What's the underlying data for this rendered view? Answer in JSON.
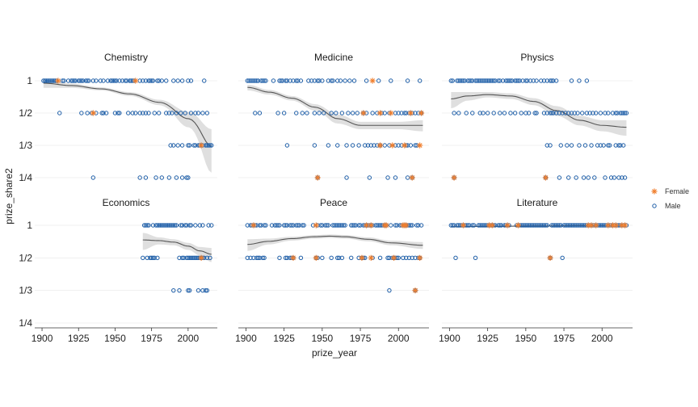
{
  "chart_data": {
    "type": "scatter",
    "xlabel": "prize_year",
    "ylabel": "prize_share2",
    "xlim": [
      1895,
      2020
    ],
    "x_ticks": [
      1900,
      1925,
      1950,
      1975,
      2000
    ],
    "y_scale": "reciprocal",
    "y_ticks": [
      {
        "label": "1",
        "value": 1
      },
      {
        "label": "1/2",
        "value": 0.5
      },
      {
        "label": "1/3",
        "value": 0.3333
      },
      {
        "label": "1/4",
        "value": 0.25
      }
    ],
    "facets_layout": "2 rows x 3 columns, x axis shared per column, y axis shared per row",
    "smoother": {
      "method": "loess with confidence band",
      "line_color": "#555555",
      "band_color": "#d9d9d9"
    },
    "legend": {
      "position": "right",
      "entries": [
        {
          "name": "Female",
          "shape": "asterisk",
          "color": "#f07f2e"
        },
        {
          "name": "Male",
          "shape": "open-circle",
          "color": "#1f5fa8"
        }
      ]
    },
    "panels": [
      {
        "title": "Chemistry",
        "male": {
          "1": [
            1901,
            1902,
            1903,
            1904,
            1905,
            1906,
            1907,
            1908,
            1909,
            1910,
            1914,
            1915,
            1918,
            1920,
            1921,
            1922,
            1923,
            1925,
            1926,
            1927,
            1928,
            1930,
            1931,
            1932,
            1935,
            1937,
            1940,
            1942,
            1945,
            1947,
            1948,
            1949,
            1950,
            1951,
            1953,
            1955,
            1957,
            1958,
            1960,
            1961,
            1962,
            1963,
            1967,
            1969,
            1971,
            1973,
            1974,
            1975,
            1976,
            1979,
            1980,
            1982,
            1985,
            1990,
            1993,
            1996,
            2000,
            2002,
            2011
          ],
          "0.5": [
            1912,
            1927,
            1931,
            1934,
            1937,
            1941,
            1942,
            1944,
            1950,
            1952,
            1953,
            1959,
            1962,
            1964,
            1967,
            1969,
            1971,
            1973,
            1977,
            1980,
            1985,
            1987,
            1989,
            1992,
            1995,
            1998,
            2002,
            2005,
            2007,
            2010,
            2013
          ],
          "0.3333": [
            1988,
            1990,
            1993,
            1996,
            2000,
            2001,
            2004,
            2005,
            2007,
            2008,
            2010,
            2012,
            2013,
            2014,
            2015,
            2016
          ],
          "0.25": [
            1935,
            1967,
            1971,
            1978,
            1982,
            1987,
            1992,
            1996,
            1999,
            2000
          ]
        },
        "female": {
          "1": [
            1911,
            1964
          ],
          "0.5": [
            1935
          ],
          "0.3333": [
            2009
          ],
          "0.25": []
        },
        "smooth": {
          "x": [
            1901,
            1920,
            1940,
            1960,
            1980,
            2000,
            2016
          ],
          "y": [
            0.93,
            0.87,
            0.8,
            0.71,
            0.6,
            0.46,
            0.33
          ],
          "band_halfwidth": [
            0.11,
            0.05,
            0.03,
            0.03,
            0.03,
            0.05,
            0.07
          ]
        }
      },
      {
        "title": "Medicine",
        "male": {
          "1": [
            1901,
            1902,
            1903,
            1904,
            1905,
            1906,
            1907,
            1908,
            1910,
            1911,
            1912,
            1913,
            1918,
            1922,
            1923,
            1924,
            1926,
            1927,
            1929,
            1931,
            1933,
            1934,
            1936,
            1941,
            1943,
            1945,
            1947,
            1948,
            1950,
            1954,
            1956,
            1957,
            1960,
            1962,
            1965,
            1968,
            1971,
            1979,
            1987,
            1995,
            2006,
            2014
          ],
          "0.5": [
            1906,
            1909,
            1921,
            1925,
            1933,
            1937,
            1940,
            1945,
            1948,
            1951,
            1956,
            1959,
            1963,
            1967,
            1970,
            1973,
            1977,
            1979,
            1983,
            1986,
            1989,
            1991,
            1994,
            1998,
            2000,
            2002,
            2004,
            2005,
            2007,
            2009,
            2011,
            2013,
            2015
          ],
          "0.3333": [
            1927,
            1945,
            1954,
            1960,
            1966,
            1970,
            1974,
            1978,
            1980,
            1982,
            1984,
            1986,
            1988,
            1991,
            1994,
            1998,
            2000,
            2002,
            2005,
            2006,
            2008,
            2011,
            2012
          ],
          "0.25": [
            1947,
            1966,
            1981,
            1993,
            1998,
            2006,
            2009
          ]
        },
        "female": {
          "1": [
            1983
          ],
          "0.5": [
            1977,
            1988,
            1995,
            2008,
            2015
          ],
          "0.3333": [
            1988,
            1996,
            2004,
            2014
          ],
          "0.25": [
            1947,
            2009
          ]
        },
        "smooth": {
          "x": [
            1901,
            1915,
            1930,
            1945,
            1960,
            1975,
            1990,
            2000,
            2016
          ],
          "y": [
            0.83,
            0.74,
            0.65,
            0.55,
            0.46,
            0.42,
            0.42,
            0.42,
            0.42
          ],
          "band_halfwidth": [
            0.06,
            0.04,
            0.03,
            0.03,
            0.03,
            0.02,
            0.02,
            0.02,
            0.03
          ]
        }
      },
      {
        "title": "Physics",
        "male": {
          "1": [
            1901,
            1902,
            1905,
            1906,
            1907,
            1908,
            1909,
            1910,
            1912,
            1913,
            1914,
            1915,
            1917,
            1918,
            1919,
            1920,
            1921,
            1922,
            1923,
            1924,
            1925,
            1926,
            1927,
            1928,
            1929,
            1930,
            1932,
            1933,
            1935,
            1937,
            1938,
            1939,
            1940,
            1941,
            1943,
            1944,
            1945,
            1946,
            1948,
            1950,
            1951,
            1953,
            1955,
            1957,
            1960,
            1962,
            1964,
            1966,
            1967,
            1968,
            1970,
            1980,
            1985,
            1990
          ],
          "0.5": [
            1903,
            1906,
            1911,
            1915,
            1920,
            1922,
            1925,
            1929,
            1933,
            1936,
            1940,
            1943,
            1947,
            1950,
            1952,
            1956,
            1957,
            1962,
            1964,
            1966,
            1967,
            1968,
            1970,
            1972,
            1974,
            1976,
            1978,
            1980,
            1982,
            1984,
            1987,
            1990,
            1992,
            1994,
            1996,
            1999,
            2002,
            2004,
            2007,
            2009,
            2010,
            2012,
            2013,
            2014,
            2015,
            2016
          ],
          "0.3333": [
            1964,
            1966,
            1973,
            1977,
            1980,
            1985,
            1989,
            1993,
            1997,
            1999,
            2001,
            2004,
            2005,
            2009,
            2011,
            2012,
            2014
          ],
          "0.25": [
            1903,
            1963,
            1972,
            1978,
            1983,
            1988,
            1991,
            1995,
            2002,
            2006,
            2008,
            2011,
            2013,
            2015
          ]
        },
        "female": {
          "1": [],
          "0.5": [],
          "0.3333": [],
          "0.25": [
            1903,
            1963
          ]
        },
        "smooth": {
          "x": [
            1901,
            1912,
            1925,
            1940,
            1955,
            1970,
            1985,
            2000,
            2016
          ],
          "y": [
            0.64,
            0.68,
            0.7,
            0.68,
            0.61,
            0.52,
            0.45,
            0.42,
            0.41
          ],
          "band_halfwidth": [
            0.1,
            0.06,
            0.04,
            0.04,
            0.04,
            0.04,
            0.03,
            0.03,
            0.04
          ]
        }
      },
      {
        "title": "Economics",
        "male": {
          "1": [
            1970,
            1971,
            1972,
            1973,
            1976,
            1978,
            1979,
            1980,
            1981,
            1982,
            1983,
            1984,
            1985,
            1986,
            1987,
            1988,
            1989,
            1990,
            1991,
            1992,
            1995,
            1996,
            1998,
            1999,
            2001,
            2002,
            2005,
            2008,
            2010,
            2014,
            2016
          ],
          "0.5": [
            1969,
            1972,
            1974,
            1975,
            1976,
            1977,
            1979,
            1994,
            1996,
            1997,
            1999,
            2000,
            2001,
            2002,
            2003,
            2004,
            2005,
            2006,
            2007,
            2008,
            2009,
            2010,
            2011,
            2013,
            2015
          ],
          "0.3333": [
            1990,
            1994,
            2000,
            2001,
            2007,
            2010,
            2012,
            2013
          ],
          "0.25": []
        },
        "female": {
          "1": [],
          "0.5": [
            2009
          ],
          "0.3333": [],
          "0.25": []
        },
        "smooth": {
          "x": [
            1969,
            1980,
            1990,
            2000,
            2008,
            2016
          ],
          "y": [
            0.69,
            0.68,
            0.66,
            0.61,
            0.56,
            0.53
          ],
          "band_halfwidth": [
            0.12,
            0.05,
            0.04,
            0.04,
            0.04,
            0.06
          ]
        }
      },
      {
        "title": "Peace",
        "male": {
          "1": [
            1901,
            1903,
            1904,
            1906,
            1907,
            1909,
            1910,
            1912,
            1913,
            1917,
            1919,
            1920,
            1921,
            1922,
            1925,
            1926,
            1927,
            1929,
            1930,
            1931,
            1933,
            1934,
            1935,
            1937,
            1938,
            1944,
            1947,
            1949,
            1950,
            1952,
            1953,
            1954,
            1957,
            1958,
            1959,
            1960,
            1961,
            1962,
            1963,
            1964,
            1965,
            1969,
            1970,
            1971,
            1972,
            1974,
            1975,
            1977,
            1978,
            1979,
            1980,
            1981,
            1982,
            1983,
            1985,
            1986,
            1987,
            1988,
            1989,
            1990,
            1991,
            1992,
            1995,
            1998,
            1999,
            2001,
            2002,
            2004,
            2005,
            2006,
            2007,
            2008,
            2009,
            2012,
            2013,
            2015
          ],
          "0.5": [
            1901,
            1903,
            1905,
            1907,
            1908,
            1909,
            1911,
            1912,
            1922,
            1926,
            1927,
            1929,
            1930,
            1931,
            1936,
            1946,
            1947,
            1950,
            1956,
            1960,
            1961,
            1963,
            1969,
            1974,
            1976,
            1977,
            1978,
            1983,
            1988,
            1993,
            1994,
            1996,
            1997,
            1998,
            1999,
            2000,
            2003,
            2005,
            2007,
            2009,
            2011,
            2013,
            2014
          ],
          "0.3333": [
            1994,
            2011
          ],
          "0.25": []
        },
        "female": {
          "1": [
            1905,
            1946,
            1979,
            1982,
            1991,
            1992,
            2003,
            2004,
            2005
          ],
          "0.5": [
            1931,
            1946,
            1976,
            1982,
            1997,
            2014
          ],
          "0.3333": [
            2011
          ],
          "0.25": []
        },
        "smooth": {
          "x": [
            1901,
            1915,
            1930,
            1945,
            1955,
            1965,
            1980,
            1995,
            2016
          ],
          "y": [
            0.63,
            0.67,
            0.71,
            0.74,
            0.75,
            0.74,
            0.7,
            0.65,
            0.62
          ],
          "band_halfwidth": [
            0.07,
            0.04,
            0.03,
            0.03,
            0.03,
            0.03,
            0.03,
            0.03,
            0.04
          ]
        }
      },
      {
        "title": "Literature",
        "male": {
          "1": [
            1901,
            1902,
            1903,
            1905,
            1906,
            1907,
            1908,
            1910,
            1911,
            1912,
            1913,
            1915,
            1916,
            1919,
            1920,
            1921,
            1922,
            1923,
            1924,
            1925,
            1927,
            1928,
            1929,
            1930,
            1932,
            1933,
            1934,
            1936,
            1937,
            1939,
            1944,
            1946,
            1947,
            1948,
            1949,
            1950,
            1951,
            1952,
            1953,
            1954,
            1955,
            1956,
            1957,
            1958,
            1959,
            1960,
            1961,
            1962,
            1963,
            1964,
            1967,
            1968,
            1969,
            1970,
            1971,
            1972,
            1973,
            1975,
            1976,
            1977,
            1978,
            1979,
            1980,
            1981,
            1982,
            1983,
            1984,
            1985,
            1986,
            1987,
            1988,
            1989,
            1990,
            1992,
            1994,
            1995,
            1997,
            1998,
            1999,
            2000,
            2001,
            2002,
            2003,
            2005,
            2006,
            2008,
            2010,
            2011,
            2012,
            2014,
            2016
          ],
          "0.5": [
            1904,
            1917,
            1966,
            1974
          ],
          "0.3333": [],
          "0.25": []
        },
        "female": {
          "1": [
            1909,
            1926,
            1928,
            1938,
            1945,
            1991,
            1993,
            1996,
            2004,
            2007,
            2009,
            2013,
            2015
          ],
          "0.5": [
            1966
          ],
          "0.3333": [],
          "0.25": []
        },
        "smooth": {
          "x": [
            1901,
            1930,
            1960,
            1990,
            2016
          ],
          "y": [
            0.96,
            0.97,
            0.98,
            0.99,
            0.995
          ],
          "band_halfwidth": [
            0.03,
            0.015,
            0.01,
            0.01,
            0.02
          ]
        }
      }
    ]
  }
}
